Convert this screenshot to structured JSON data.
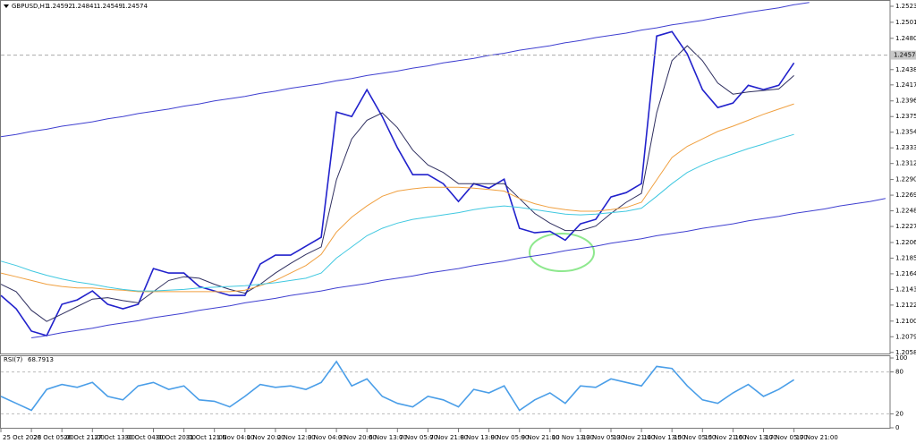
{
  "chart_data": [
    {
      "type": "line",
      "title": "GBPUSD,H1",
      "quote": [
        1.24592,
        1.24841,
        1.24549,
        1.24574
      ],
      "categories": [
        "25 Oct 2023",
        null,
        "26 Oct 05:00",
        null,
        "26 Oct 21:00",
        null,
        "27 Oct 13:00",
        null,
        "30 Oct 04:00",
        null,
        "30 Oct 20:00",
        null,
        "31 Oct 12:00",
        null,
        "1 Nov 04:00",
        null,
        "1 Nov 20:00",
        null,
        "2 Nov 12:00",
        null,
        "3 Nov 04:00",
        null,
        "3 Nov 20:00",
        null,
        "6 Nov 13:00",
        null,
        "7 Nov 05:00",
        null,
        "7 Nov 21:00",
        null,
        "8 Nov 13:00",
        null,
        "9 Nov 05:00",
        null,
        "9 Nov 21:00",
        null,
        "10 Nov 13:00",
        null,
        "13 Nov 05:00",
        null,
        "13 Nov 21:00",
        null,
        "14 Nov 13:00",
        null,
        "15 Nov 05:00",
        null,
        "15 Nov 21:00",
        null,
        "16 Nov 13:00",
        null,
        "17 Nov 05:00",
        null,
        "17 Nov 21:00",
        null,
        null,
        null,
        null,
        null,
        null
      ],
      "series": [
        {
          "color": "#2222cc",
          "values": [
            1.2135,
            1.2117,
            1.2087,
            1.2081,
            1.2123,
            1.2129,
            1.2141,
            1.2123,
            1.2117,
            1.2123,
            1.2171,
            1.2165,
            1.2165,
            1.2147,
            1.2141,
            1.2135,
            1.2135,
            1.2177,
            1.2189,
            1.2189,
            1.2201,
            1.2213,
            1.2381,
            1.2375,
            1.2411,
            1.2375,
            1.2333,
            1.2297,
            1.2297,
            1.2285,
            1.2261,
            1.2285,
            1.2279,
            1.2291,
            1.2225,
            1.2219,
            1.2221,
            1.2209,
            1.2231,
            1.2237,
            1.2267,
            1.2273,
            1.2285,
            1.2483,
            1.2489,
            1.2459,
            1.2411,
            1.2387,
            1.2393,
            1.2417,
            1.2411,
            1.2417,
            1.2447,
            null,
            null,
            null,
            null,
            null,
            null
          ]
        },
        {
          "color": "#303060",
          "values": [
            1.215,
            1.214,
            1.2115,
            1.21,
            1.211,
            1.212,
            1.213,
            1.2132,
            1.2128,
            1.2125,
            1.214,
            1.2155,
            1.216,
            1.2158,
            1.215,
            1.2143,
            1.2138,
            1.215,
            1.2165,
            1.2178,
            1.219,
            1.22,
            1.229,
            1.2345,
            1.237,
            1.238,
            1.236,
            1.233,
            1.231,
            1.23,
            1.2285,
            1.2285,
            1.2285,
            1.2285,
            1.2265,
            1.2245,
            1.2232,
            1.2222,
            1.2222,
            1.2228,
            1.2245,
            1.226,
            1.2272,
            1.238,
            1.245,
            1.247,
            1.245,
            1.242,
            1.2405,
            1.2408,
            1.241,
            1.2412,
            1.243,
            null,
            null,
            null,
            null,
            null,
            null
          ]
        },
        {
          "color": "#f0a040",
          "values": [
            1.2165,
            1.216,
            1.2155,
            1.215,
            1.2147,
            1.2145,
            1.2145,
            1.2143,
            1.2142,
            1.214,
            1.214,
            1.214,
            1.214,
            1.214,
            1.214,
            1.214,
            1.2142,
            1.2148,
            1.2155,
            1.2165,
            1.2175,
            1.219,
            1.222,
            1.224,
            1.2255,
            1.2268,
            1.2275,
            1.2278,
            1.228,
            1.228,
            1.228,
            1.2279,
            1.2277,
            1.2275,
            1.2265,
            1.2258,
            1.2253,
            1.225,
            1.2248,
            1.2248,
            1.225,
            1.2253,
            1.226,
            1.229,
            1.232,
            1.2335,
            1.2345,
            1.2355,
            1.2362,
            1.237,
            1.2378,
            1.2385,
            1.2392,
            null,
            null,
            null,
            null,
            null,
            null
          ]
        },
        {
          "color": "#40c8e0",
          "values": [
            1.2181,
            1.2175,
            1.2168,
            1.2162,
            1.2157,
            1.2153,
            1.215,
            1.2146,
            1.2143,
            1.2141,
            1.2141,
            1.2142,
            1.2143,
            1.2145,
            1.2146,
            1.2147,
            1.2148,
            1.215,
            1.2152,
            1.2155,
            1.2158,
            1.2165,
            1.2185,
            1.22,
            1.2215,
            1.2225,
            1.2232,
            1.2237,
            1.224,
            1.2243,
            1.2246,
            1.225,
            1.2253,
            1.2255,
            1.2253,
            1.225,
            1.2247,
            1.2244,
            1.2243,
            1.2244,
            1.2246,
            1.2248,
            1.2252,
            1.2268,
            1.2285,
            1.23,
            1.231,
            1.2318,
            1.2325,
            1.2332,
            1.2338,
            1.2345,
            1.2351,
            null,
            null,
            null,
            null,
            null,
            null
          ]
        },
        {
          "color": "#4040d0",
          "values": [
            1.2348,
            1.2351,
            1.2355,
            1.2358,
            1.2362,
            1.2365,
            1.2368,
            1.2372,
            1.2375,
            1.2379,
            1.2382,
            1.2385,
            1.2389,
            1.2392,
            1.2396,
            1.2399,
            1.2402,
            1.2406,
            1.2409,
            1.2413,
            1.2416,
            1.2419,
            1.2423,
            1.2426,
            1.243,
            1.2433,
            1.2436,
            1.244,
            1.2443,
            1.2447,
            1.245,
            1.2453,
            1.2457,
            1.246,
            1.2464,
            1.2467,
            1.247,
            1.2474,
            1.2477,
            1.2481,
            1.2484,
            1.2487,
            1.2491,
            1.2494,
            1.2498,
            1.2501,
            1.2504,
            1.2508,
            1.2511,
            1.2515,
            1.2518,
            1.2521,
            1.2525,
            1.2528,
            null,
            null,
            null,
            null,
            null
          ]
        },
        {
          "color": "#4040d0",
          "values": [
            null,
            null,
            1.2078,
            1.2081,
            1.2085,
            1.2088,
            1.2091,
            1.2095,
            1.2098,
            1.2101,
            1.2105,
            1.2108,
            1.2111,
            1.2115,
            1.2118,
            1.2121,
            1.2125,
            1.2128,
            1.2131,
            1.2135,
            1.2138,
            1.2141,
            1.2145,
            1.2148,
            1.2151,
            1.2155,
            1.2158,
            1.2161,
            1.2165,
            1.2168,
            1.2171,
            1.2175,
            1.2178,
            1.2181,
            1.2185,
            1.2188,
            1.2191,
            1.2195,
            1.2198,
            1.2201,
            1.2205,
            1.2208,
            1.2211,
            1.2215,
            1.2218,
            1.2221,
            1.2225,
            1.2228,
            1.2231,
            1.2235,
            1.2238,
            1.2241,
            1.2245,
            1.2248,
            1.2251,
            1.2255,
            1.2258,
            1.2261,
            1.2265
          ]
        }
      ],
      "ylim": [
        1.2057,
        1.2529
      ],
      "yticks": [
        {
          "value": 1.2523,
          "label": "1.25230"
        },
        1.25015,
        {
          "value": 1.248,
          "label": "1.24800"
        },
        1.2438,
        1.24175,
        {
          "value": 1.2396,
          "label": "1.23960"
        },
        {
          "value": 1.2375,
          "label": "1.23750"
        },
        {
          "value": 1.2354,
          "label": "1.23540"
        },
        {
          "value": 1.2333,
          "label": "1.23330"
        },
        {
          "value": 1.2312,
          "label": "1.23120"
        },
        1.22905,
        1.22695,
        1.22485,
        1.22275,
        {
          "value": 1.2206,
          "label": "1.22060"
        },
        {
          "value": 1.2185,
          "label": "1.21850"
        },
        {
          "value": 1.2164,
          "label": "1.21640"
        },
        {
          "value": 1.2143,
          "label": "1.21430"
        },
        {
          "value": 1.2122,
          "label": "1.21220"
        },
        1.21005,
        1.20795,
        1.20585
      ]
    },
    {
      "type": "line",
      "title": "RSI(7)",
      "series": [
        {
          "color": "#4a9ee8",
          "values": [
            45,
            35,
            25,
            55,
            62,
            58,
            65,
            45,
            40,
            60,
            65,
            55,
            60,
            40,
            38,
            30,
            45,
            62,
            58,
            60,
            55,
            65,
            95,
            60,
            70,
            45,
            35,
            30,
            45,
            40,
            30,
            55,
            50,
            60,
            25,
            40,
            50,
            35,
            60,
            58,
            70,
            65,
            60,
            88,
            85,
            60,
            40,
            35,
            50,
            62,
            45,
            55,
            68.7913,
            null,
            null,
            null,
            null,
            null,
            null
          ]
        }
      ],
      "ylim": [
        0,
        100
      ],
      "yticks": [
        0,
        20,
        80,
        100
      ]
    }
  ]
}
